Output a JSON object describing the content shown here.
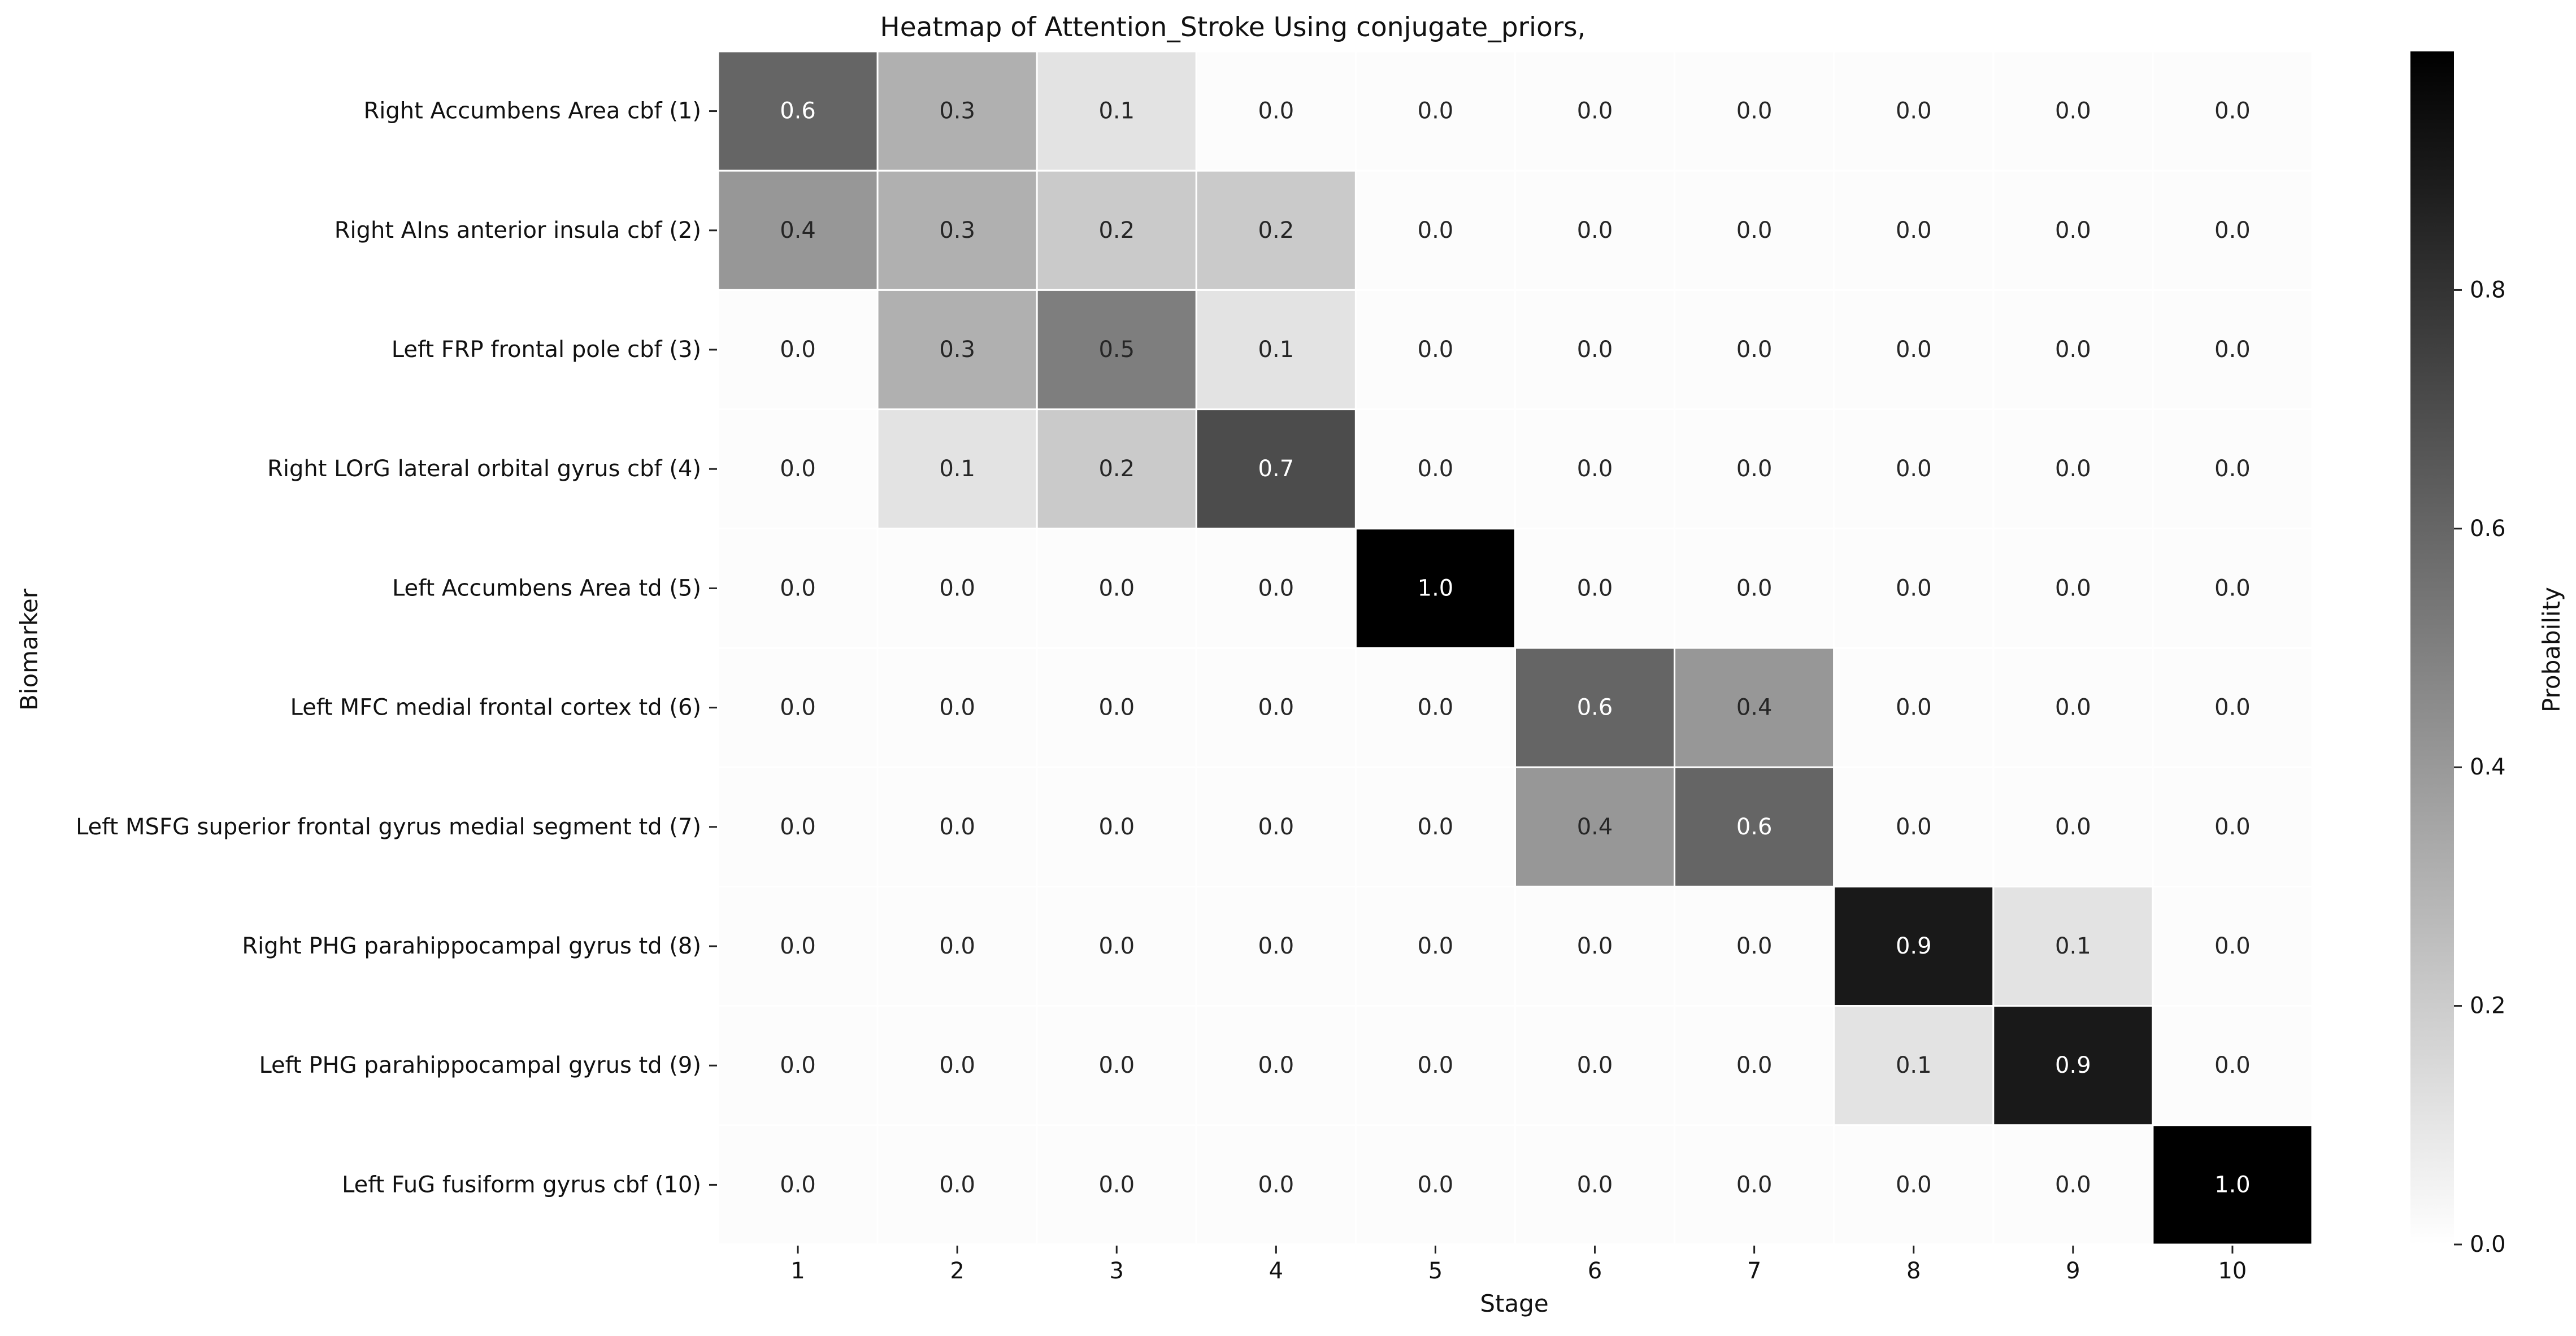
{
  "chart_data": {
    "type": "heatmap",
    "title": "Heatmap of Attention_Stroke Using conjugate_priors,",
    "xlabel": "Stage",
    "ylabel": "Biomarker",
    "x_categories": [
      "1",
      "2",
      "3",
      "4",
      "5",
      "6",
      "7",
      "8",
      "9",
      "10"
    ],
    "y_categories": [
      "Right Accumbens Area cbf (1)",
      "Right AIns anterior insula cbf (2)",
      "Left FRP frontal pole cbf (3)",
      "Right LOrG lateral orbital gyrus cbf (4)",
      "Left Accumbens Area td (5)",
      "Left MFC medial frontal cortex td (6)",
      "Left MSFG superior frontal gyrus medial segment td (7)",
      "Right PHG parahippocampal gyrus td (8)",
      "Left PHG parahippocampal gyrus td (9)",
      "Left FuG fusiform gyrus cbf (10)"
    ],
    "values": [
      [
        0.6,
        0.3,
        0.1,
        0.0,
        0.0,
        0.0,
        0.0,
        0.0,
        0.0,
        0.0
      ],
      [
        0.4,
        0.3,
        0.2,
        0.2,
        0.0,
        0.0,
        0.0,
        0.0,
        0.0,
        0.0
      ],
      [
        0.0,
        0.3,
        0.5,
        0.1,
        0.0,
        0.0,
        0.0,
        0.0,
        0.0,
        0.0
      ],
      [
        0.0,
        0.1,
        0.2,
        0.7,
        0.0,
        0.0,
        0.0,
        0.0,
        0.0,
        0.0
      ],
      [
        0.0,
        0.0,
        0.0,
        0.0,
        1.0,
        0.0,
        0.0,
        0.0,
        0.0,
        0.0
      ],
      [
        0.0,
        0.0,
        0.0,
        0.0,
        0.0,
        0.6,
        0.4,
        0.0,
        0.0,
        0.0
      ],
      [
        0.0,
        0.0,
        0.0,
        0.0,
        0.0,
        0.4,
        0.6,
        0.0,
        0.0,
        0.0
      ],
      [
        0.0,
        0.0,
        0.0,
        0.0,
        0.0,
        0.0,
        0.0,
        0.9,
        0.1,
        0.0
      ],
      [
        0.0,
        0.0,
        0.0,
        0.0,
        0.0,
        0.0,
        0.0,
        0.1,
        0.9,
        0.0
      ],
      [
        0.0,
        0.0,
        0.0,
        0.0,
        0.0,
        0.0,
        0.0,
        0.0,
        0.0,
        1.0
      ]
    ],
    "colorbar": {
      "label": "Probability",
      "range": [
        0.0,
        1.0
      ],
      "ticks": [
        "0.0",
        "0.2",
        "0.4",
        "0.6",
        "0.8"
      ],
      "colormap": "Greys",
      "color_low": "#ffffff",
      "color_high": "#000000"
    },
    "grid": false,
    "cell_border_color": "#ffffff"
  }
}
